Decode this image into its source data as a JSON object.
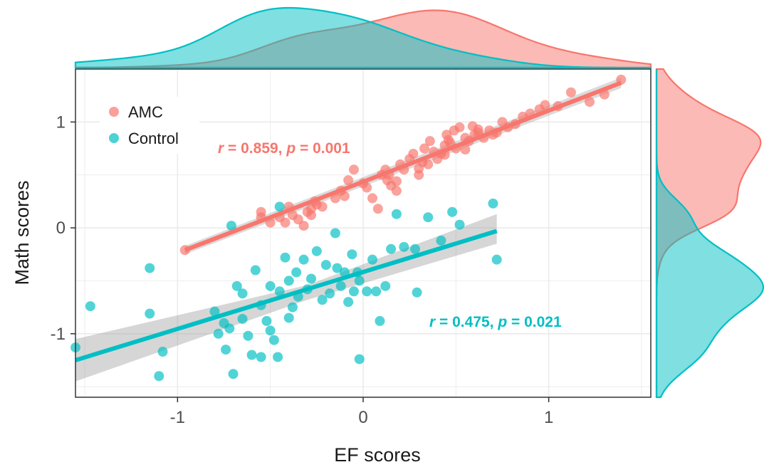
{
  "chart_data": {
    "type": "scatter",
    "xlabel": "EF scores",
    "ylabel": "Math scores",
    "xlim": [
      -1.55,
      1.55
    ],
    "ylim": [
      -1.6,
      1.5
    ],
    "x_ticks": [
      -1,
      0,
      1
    ],
    "y_ticks": [
      -1,
      0,
      1
    ],
    "x_tick_labels": [
      "-1",
      "0",
      "1"
    ],
    "y_tick_labels": [
      "-1",
      "0",
      "1"
    ],
    "grid": true,
    "legend_position": "top-left",
    "marginal_density": {
      "top": "EF scores density",
      "right": "Math scores density"
    },
    "series": [
      {
        "name": "AMC",
        "color": "#F8766D",
        "annotation": {
          "r_label": "r",
          "r_text": " = 0.859, ",
          "p_label": "p",
          "p_text": " = 0.001"
        },
        "fit": {
          "x": [
            -0.96,
            1.39
          ],
          "y": [
            -0.21,
            1.37
          ]
        },
        "points": [
          [
            -0.96,
            -0.21
          ],
          [
            -0.55,
            0.1
          ],
          [
            -0.55,
            0.15
          ],
          [
            -0.5,
            0.05
          ],
          [
            -0.45,
            0.1
          ],
          [
            -0.42,
            0.05
          ],
          [
            -0.4,
            0.2
          ],
          [
            -0.38,
            0.12
          ],
          [
            -0.35,
            0.08
          ],
          [
            -0.32,
            0.02
          ],
          [
            -0.3,
            0.15
          ],
          [
            -0.28,
            0.18
          ],
          [
            -0.25,
            0.22
          ],
          [
            -0.22,
            0.2
          ],
          [
            -0.28,
            0.12
          ],
          [
            -0.26,
            0.25
          ],
          [
            -0.15,
            0.28
          ],
          [
            -0.12,
            0.35
          ],
          [
            -0.1,
            0.3
          ],
          [
            -0.08,
            0.45
          ],
          [
            -0.05,
            0.55
          ],
          [
            0.0,
            0.42
          ],
          [
            0.02,
            0.38
          ],
          [
            0.05,
            0.28
          ],
          [
            0.08,
            0.18
          ],
          [
            0.1,
            0.5
          ],
          [
            0.12,
            0.55
          ],
          [
            0.13,
            0.45
          ],
          [
            0.15,
            0.4
          ],
          [
            0.18,
            0.35
          ],
          [
            0.2,
            0.6
          ],
          [
            0.22,
            0.55
          ],
          [
            0.25,
            0.65
          ],
          [
            0.27,
            0.7
          ],
          [
            0.3,
            0.5
          ],
          [
            0.32,
            0.62
          ],
          [
            0.33,
            0.75
          ],
          [
            0.35,
            0.6
          ],
          [
            0.36,
            0.82
          ],
          [
            0.38,
            0.72
          ],
          [
            0.4,
            0.65
          ],
          [
            0.42,
            0.7
          ],
          [
            0.44,
            0.78
          ],
          [
            0.45,
            0.88
          ],
          [
            0.47,
            0.8
          ],
          [
            0.49,
            0.92
          ],
          [
            0.5,
            0.75
          ],
          [
            0.52,
            0.95
          ],
          [
            0.55,
            0.85
          ],
          [
            0.57,
            0.82
          ],
          [
            0.59,
            0.96
          ],
          [
            0.6,
            0.88
          ],
          [
            0.62,
            0.9
          ],
          [
            0.65,
            0.85
          ],
          [
            0.68,
            0.92
          ],
          [
            0.7,
            0.88
          ],
          [
            0.72,
            0.9
          ],
          [
            0.75,
            1.0
          ],
          [
            0.78,
            0.95
          ],
          [
            0.82,
            0.98
          ],
          [
            0.86,
            1.05
          ],
          [
            0.9,
            1.08
          ],
          [
            0.95,
            1.12
          ],
          [
            0.98,
            1.16
          ],
          [
            1.05,
            1.15
          ],
          [
            1.12,
            1.28
          ],
          [
            1.22,
            1.19
          ],
          [
            1.3,
            1.26
          ],
          [
            1.39,
            1.4
          ],
          [
            0.62,
            0.93
          ],
          [
            0.46,
            0.83
          ],
          [
            0.3,
            0.56
          ],
          [
            0.44,
            0.69
          ],
          [
            0.55,
            0.74
          ],
          [
            0.14,
            0.5
          ],
          [
            0.18,
            0.44
          ]
        ]
      },
      {
        "name": "Control",
        "color": "#00BFC4",
        "annotation": {
          "r_label": "r",
          "r_text": " = 0.475, ",
          "p_label": "p",
          "p_text": " = 0.021"
        },
        "fit": {
          "x": [
            -1.55,
            0.72
          ],
          "y": [
            -1.25,
            -0.03
          ]
        },
        "band": {
          "x": [
            -1.55,
            -0.3,
            0.72
          ],
          "lower": [
            -1.45,
            -0.68,
            -0.15
          ],
          "upper": [
            -1.05,
            -0.54,
            0.13
          ]
        },
        "points": [
          [
            -1.55,
            -1.13
          ],
          [
            -1.47,
            -0.74
          ],
          [
            -1.15,
            -0.38
          ],
          [
            -1.15,
            -0.81
          ],
          [
            -1.1,
            -1.4
          ],
          [
            -1.08,
            -1.17
          ],
          [
            -0.8,
            -0.79
          ],
          [
            -0.78,
            -1.0
          ],
          [
            -0.75,
            -0.9
          ],
          [
            -0.74,
            -1.15
          ],
          [
            -0.72,
            -0.95
          ],
          [
            -0.71,
            0.02
          ],
          [
            -0.7,
            -1.38
          ],
          [
            -0.68,
            -0.55
          ],
          [
            -0.65,
            -0.62
          ],
          [
            -0.62,
            -1.02
          ],
          [
            -0.6,
            -1.2
          ],
          [
            -0.58,
            -0.4
          ],
          [
            -0.55,
            -1.22
          ],
          [
            -0.55,
            -0.73
          ],
          [
            -0.52,
            -0.88
          ],
          [
            -0.5,
            -0.55
          ],
          [
            -0.48,
            -1.06
          ],
          [
            -0.46,
            -1.22
          ],
          [
            -0.45,
            -0.6
          ],
          [
            -0.45,
            0.2
          ],
          [
            -0.42,
            -0.28
          ],
          [
            -0.4,
            -0.85
          ],
          [
            -0.4,
            -0.5
          ],
          [
            -0.38,
            -0.75
          ],
          [
            -0.36,
            -0.42
          ],
          [
            -0.35,
            -0.65
          ],
          [
            -0.32,
            -0.3
          ],
          [
            -0.3,
            -0.58
          ],
          [
            -0.28,
            -0.48
          ],
          [
            -0.25,
            -0.22
          ],
          [
            -0.22,
            -0.68
          ],
          [
            -0.2,
            -0.35
          ],
          [
            -0.18,
            -0.62
          ],
          [
            -0.15,
            -0.05
          ],
          [
            -0.14,
            -0.38
          ],
          [
            -0.12,
            -0.55
          ],
          [
            -0.1,
            -0.42
          ],
          [
            -0.08,
            -0.7
          ],
          [
            -0.06,
            -0.25
          ],
          [
            -0.05,
            -0.6
          ],
          [
            -0.03,
            -0.42
          ],
          [
            -0.02,
            -0.5
          ],
          [
            0.02,
            -0.6
          ],
          [
            0.05,
            -0.3
          ],
          [
            0.07,
            -0.6
          ],
          [
            0.09,
            -0.88
          ],
          [
            0.12,
            -0.55
          ],
          [
            0.15,
            -0.2
          ],
          [
            0.18,
            0.13
          ],
          [
            0.22,
            -0.18
          ],
          [
            0.28,
            -0.2
          ],
          [
            0.29,
            -0.61
          ],
          [
            0.35,
            0.1
          ],
          [
            0.42,
            -0.12
          ],
          [
            0.48,
            0.15
          ],
          [
            0.52,
            0.03
          ],
          [
            0.7,
            0.23
          ],
          [
            0.72,
            -0.3
          ],
          [
            -0.02,
            -1.24
          ],
          [
            -0.65,
            -0.86
          ],
          [
            -0.5,
            -0.97
          ]
        ]
      }
    ]
  }
}
